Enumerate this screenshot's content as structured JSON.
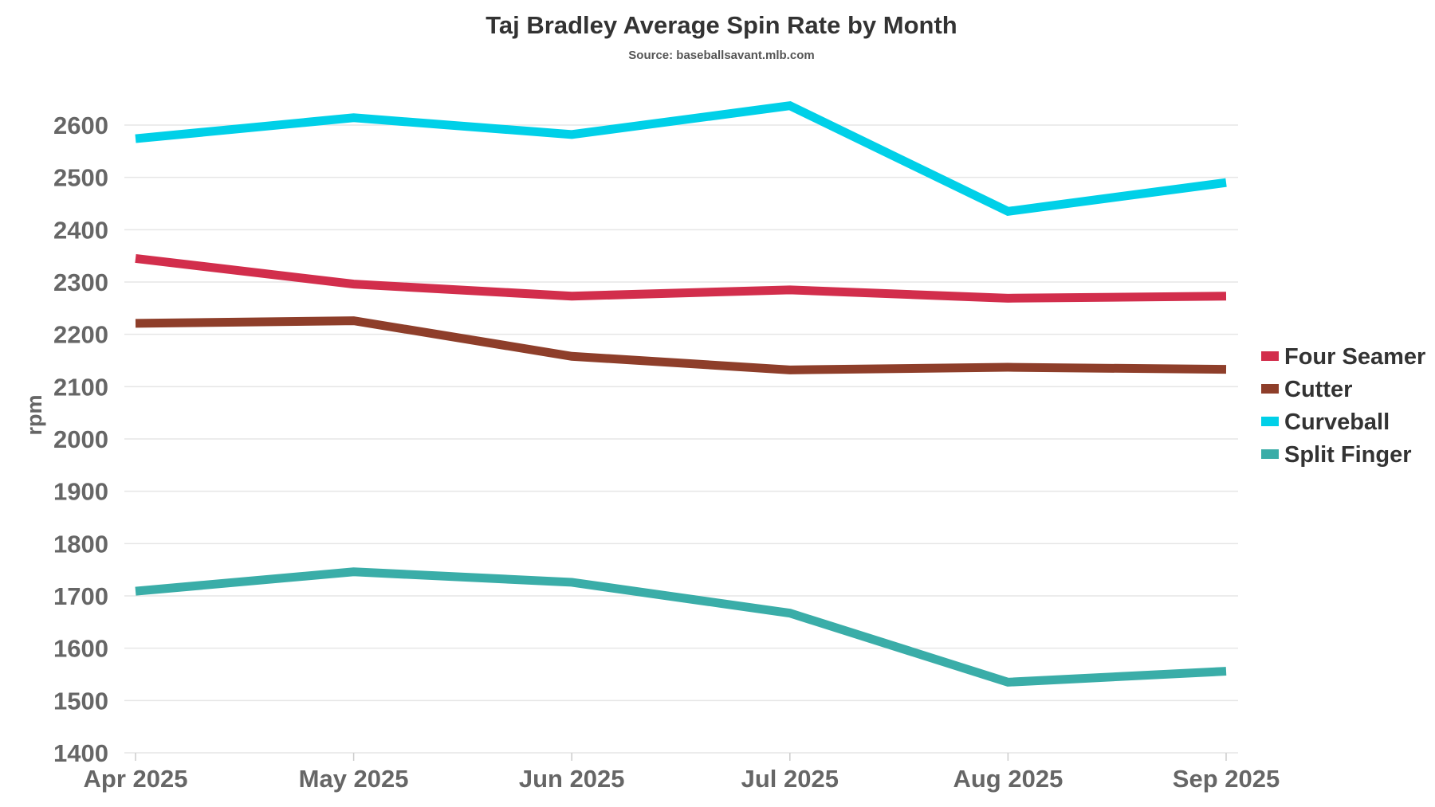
{
  "chart_data": {
    "type": "line",
    "title": "Taj Bradley Average Spin Rate by Month",
    "subtitle": "Source: baseballsavant.mlb.com",
    "xlabel": "",
    "ylabel": "rpm",
    "categories": [
      "Apr 2025",
      "May 2025",
      "Jun 2025",
      "Jul 2025",
      "Aug 2025",
      "Sep 2025"
    ],
    "ylim": [
      1400,
      2600
    ],
    "yticks": [
      1400,
      1500,
      1600,
      1700,
      1800,
      1900,
      2000,
      2100,
      2200,
      2300,
      2400,
      2500,
      2600
    ],
    "grid": true,
    "legend_position": "right",
    "series": [
      {
        "name": "Four Seamer",
        "color": "#d22e4c",
        "values": [
          2345,
          2296,
          2273,
          2285,
          2269,
          2273
        ]
      },
      {
        "name": "Cutter",
        "color": "#8e3e2a",
        "values": [
          2221,
          2226,
          2158,
          2132,
          2137,
          2133
        ]
      },
      {
        "name": "Curveball",
        "color": "#00d0e8",
        "values": [
          2574,
          2614,
          2582,
          2637,
          2435,
          2490
        ]
      },
      {
        "name": "Split Finger",
        "color": "#3aada8",
        "values": [
          1709,
          1746,
          1726,
          1667,
          1535,
          1556
        ]
      }
    ]
  }
}
